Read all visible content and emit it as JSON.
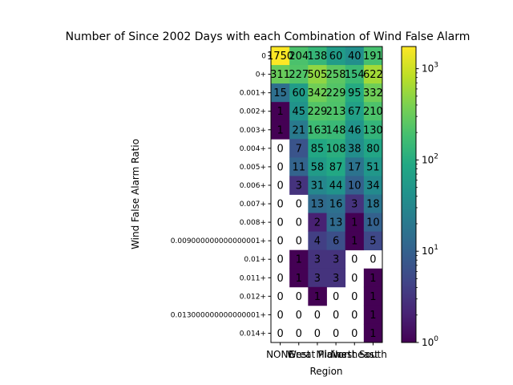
{
  "chart_data": {
    "type": "heatmap",
    "title": "Number of Since 2002 Days with each Combination of Wind False Alarm",
    "xlabel": "Region",
    "ylabel": "Wind False Alarm Ratio",
    "x_categories": [
      "NONE",
      "West",
      "Great Plains",
      "Midwest",
      "Northeast",
      "South"
    ],
    "y_categories": [
      "0",
      "0+",
      "0.001+",
      "0.002+",
      "0.003+",
      "0.004+",
      "0.005+",
      "0.006+",
      "0.007+",
      "0.008+",
      "0.009000000000000001+",
      "0.01+",
      "0.011+",
      "0.012+",
      "0.013000000000000001+",
      "0.014+"
    ],
    "values": [
      [
        1750,
        204,
        138,
        60,
        40,
        191
      ],
      [
        311,
        227,
        505,
        258,
        154,
        622
      ],
      [
        15,
        60,
        342,
        229,
        95,
        332
      ],
      [
        1,
        45,
        229,
        213,
        67,
        210
      ],
      [
        1,
        21,
        163,
        148,
        46,
        130
      ],
      [
        0,
        7,
        85,
        108,
        38,
        80
      ],
      [
        0,
        11,
        58,
        87,
        17,
        51
      ],
      [
        0,
        3,
        31,
        44,
        10,
        34
      ],
      [
        0,
        0,
        13,
        16,
        3,
        18
      ],
      [
        0,
        0,
        2,
        13,
        1,
        10
      ],
      [
        0,
        0,
        4,
        6,
        1,
        5
      ],
      [
        0,
        1,
        3,
        3,
        0,
        0
      ],
      [
        0,
        1,
        3,
        3,
        0,
        1
      ],
      [
        0,
        0,
        1,
        0,
        0,
        1
      ],
      [
        0,
        0,
        0,
        0,
        0,
        1
      ],
      [
        0,
        0,
        0,
        0,
        0,
        1
      ]
    ],
    "color_scale": "log",
    "colormap": "viridis",
    "color_range": [
      1,
      1750
    ],
    "colorbar_ticks": [
      {
        "value": 1,
        "label": "10",
        "exp": "0"
      },
      {
        "value": 10,
        "label": "10",
        "exp": "1"
      },
      {
        "value": 100,
        "label": "10",
        "exp": "2"
      },
      {
        "value": 1000,
        "label": "10",
        "exp": "3"
      }
    ],
    "zero_cells": "blank",
    "grid": false
  }
}
